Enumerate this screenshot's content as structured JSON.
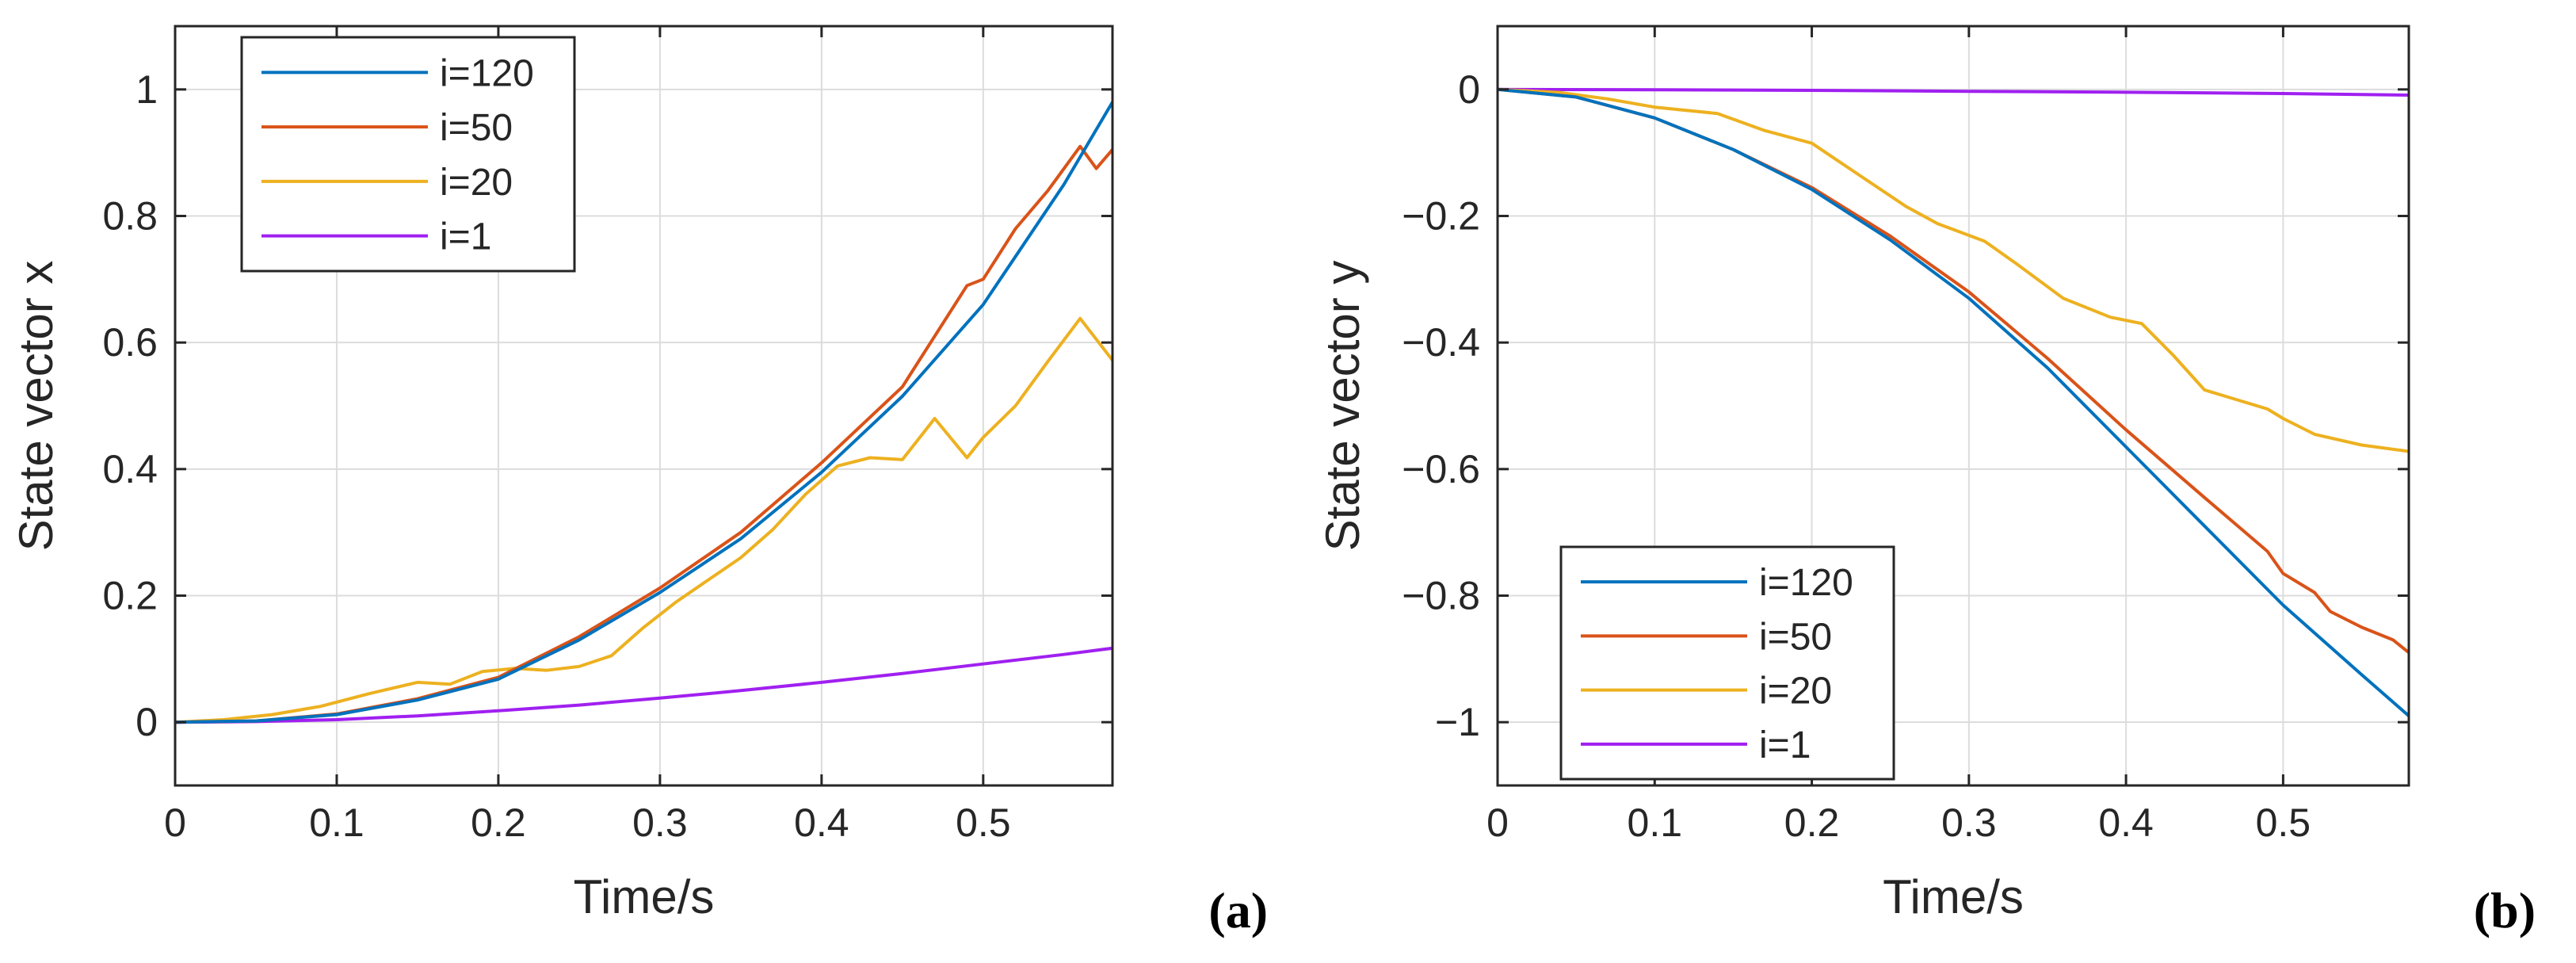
{
  "chart_data": [
    {
      "type": "line",
      "panel_label": "(a)",
      "xlabel": "Time/s",
      "ylabel": "State vector x",
      "xlim": [
        0,
        0.58
      ],
      "ylim": [
        -0.1,
        1.1
      ],
      "xticks": [
        0,
        0.1,
        0.2,
        0.3,
        0.4,
        0.5
      ],
      "xtick_labels": [
        "0",
        "0.1",
        "0.2",
        "0.3",
        "0.4",
        "0.5"
      ],
      "yticks": [
        0,
        0.2,
        0.4,
        0.6,
        0.8,
        1
      ],
      "ytick_labels": [
        "0",
        "0.2",
        "0.4",
        "0.6",
        "0.8",
        "1"
      ],
      "grid": true,
      "legend_position": "top-left",
      "series": [
        {
          "name": "i=120",
          "color": "#0072BD",
          "x": [
            0,
            0.05,
            0.1,
            0.15,
            0.2,
            0.25,
            0.3,
            0.35,
            0.4,
            0.45,
            0.5,
            0.55,
            0.58
          ],
          "y": [
            0,
            0.002,
            0.012,
            0.035,
            0.068,
            0.13,
            0.205,
            0.29,
            0.395,
            0.515,
            0.66,
            0.85,
            0.98
          ]
        },
        {
          "name": "i=50",
          "color": "#D95319",
          "x": [
            0,
            0.05,
            0.1,
            0.15,
            0.2,
            0.25,
            0.3,
            0.35,
            0.4,
            0.45,
            0.49,
            0.5,
            0.52,
            0.54,
            0.56,
            0.57,
            0.58
          ],
          "y": [
            0,
            0.002,
            0.013,
            0.037,
            0.071,
            0.135,
            0.212,
            0.3,
            0.41,
            0.53,
            0.69,
            0.7,
            0.78,
            0.84,
            0.91,
            0.875,
            0.905
          ]
        },
        {
          "name": "i=20",
          "color": "#EDB120",
          "x": [
            0,
            0.03,
            0.06,
            0.09,
            0.12,
            0.15,
            0.17,
            0.19,
            0.21,
            0.23,
            0.25,
            0.27,
            0.29,
            0.31,
            0.33,
            0.35,
            0.37,
            0.39,
            0.41,
            0.43,
            0.45,
            0.47,
            0.49,
            0.5,
            0.52,
            0.54,
            0.56,
            0.58
          ],
          "y": [
            0,
            0.004,
            0.012,
            0.025,
            0.045,
            0.063,
            0.06,
            0.08,
            0.085,
            0.082,
            0.088,
            0.105,
            0.15,
            0.19,
            0.225,
            0.26,
            0.305,
            0.36,
            0.405,
            0.418,
            0.415,
            0.48,
            0.418,
            0.45,
            0.5,
            0.57,
            0.638,
            0.572
          ]
        },
        {
          "name": "i=1",
          "color": "#A020F0",
          "x": [
            0,
            0.05,
            0.1,
            0.15,
            0.2,
            0.25,
            0.3,
            0.35,
            0.4,
            0.45,
            0.5,
            0.55,
            0.58
          ],
          "y": [
            0,
            0.001,
            0.004,
            0.01,
            0.018,
            0.027,
            0.038,
            0.05,
            0.063,
            0.077,
            0.092,
            0.107,
            0.117
          ]
        }
      ]
    },
    {
      "type": "line",
      "panel_label": "(b)",
      "xlabel": "Time/s",
      "ylabel": "State vector y",
      "xlim": [
        0,
        0.58
      ],
      "ylim": [
        -1.1,
        0.1
      ],
      "xticks": [
        0,
        0.1,
        0.2,
        0.3,
        0.4,
        0.5
      ],
      "xtick_labels": [
        "0",
        "0.1",
        "0.2",
        "0.3",
        "0.4",
        "0.5"
      ],
      "yticks": [
        -1,
        -0.8,
        -0.6,
        -0.4,
        -0.2,
        0
      ],
      "ytick_labels": [
        "−1",
        "−0.8",
        "−0.6",
        "−0.4",
        "−0.2",
        "0"
      ],
      "grid": true,
      "legend_position": "bottom-left",
      "series": [
        {
          "name": "i=120",
          "color": "#0072BD",
          "x": [
            0,
            0.05,
            0.1,
            0.15,
            0.2,
            0.25,
            0.3,
            0.35,
            0.4,
            0.45,
            0.5,
            0.55,
            0.58
          ],
          "y": [
            0,
            -0.012,
            -0.045,
            -0.095,
            -0.158,
            -0.238,
            -0.33,
            -0.44,
            -0.565,
            -0.69,
            -0.815,
            -0.925,
            -0.99
          ]
        },
        {
          "name": "i=50",
          "color": "#D95319",
          "x": [
            0,
            0.05,
            0.1,
            0.15,
            0.2,
            0.25,
            0.3,
            0.35,
            0.4,
            0.45,
            0.49,
            0.5,
            0.52,
            0.53,
            0.55,
            0.57,
            0.58
          ],
          "y": [
            0,
            -0.012,
            -0.045,
            -0.095,
            -0.155,
            -0.232,
            -0.32,
            -0.425,
            -0.538,
            -0.645,
            -0.73,
            -0.765,
            -0.795,
            -0.825,
            -0.85,
            -0.87,
            -0.89
          ]
        },
        {
          "name": "i=20",
          "color": "#EDB120",
          "x": [
            0,
            0.04,
            0.07,
            0.1,
            0.14,
            0.17,
            0.2,
            0.23,
            0.26,
            0.28,
            0.31,
            0.33,
            0.36,
            0.39,
            0.41,
            0.43,
            0.45,
            0.47,
            0.49,
            0.5,
            0.52,
            0.55,
            0.58
          ],
          "y": [
            0,
            -0.005,
            -0.015,
            -0.028,
            -0.038,
            -0.065,
            -0.085,
            -0.135,
            -0.185,
            -0.212,
            -0.24,
            -0.275,
            -0.33,
            -0.36,
            -0.37,
            -0.42,
            -0.475,
            -0.49,
            -0.505,
            -0.52,
            -0.545,
            -0.562,
            -0.572
          ]
        },
        {
          "name": "i=1",
          "color": "#A020F0",
          "x": [
            0,
            0.1,
            0.2,
            0.3,
            0.4,
            0.5,
            0.58
          ],
          "y": [
            0,
            -0.0005,
            -0.0015,
            -0.003,
            -0.0045,
            -0.0065,
            -0.009
          ]
        }
      ]
    }
  ]
}
